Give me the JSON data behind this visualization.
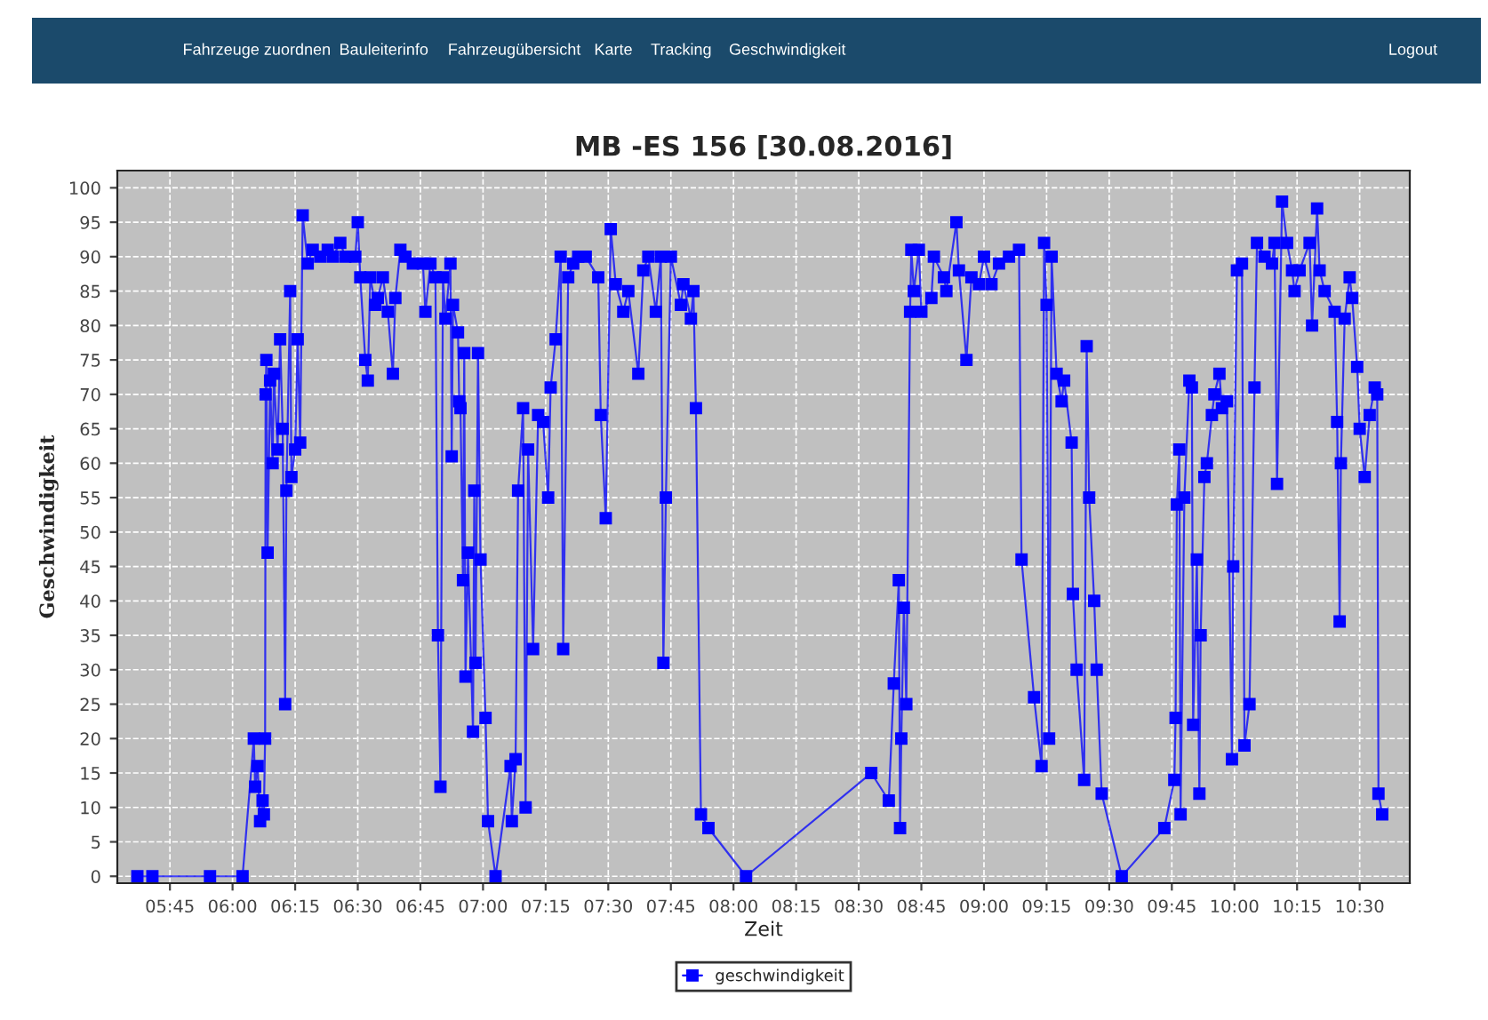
{
  "chart_data": {
    "type": "line",
    "title": "MB -ES 156 [30.08.2016]",
    "xlabel": "Zeit",
    "ylabel": "Geschwindigkeit",
    "annotations": [
      "Fahrzeuge zuordnen",
      "Bauleiterinfo",
      "Fahrzeugübersicht",
      "Karte",
      "Tracking",
      "Geschwindigkeit",
      "Logout"
    ],
    "series": [
      {
        "name": "geschwindigkeit",
        "color": "#0000ff",
        "x": [
          5.62,
          5.68,
          5.91,
          6.04,
          6.085,
          6.09,
          6.1,
          6.11,
          6.12,
          6.125,
          6.13,
          6.132,
          6.135,
          6.14,
          6.15,
          6.16,
          6.165,
          6.18,
          6.19,
          6.2,
          6.21,
          6.215,
          6.23,
          6.235,
          6.25,
          6.26,
          6.27,
          6.28,
          6.3,
          6.32,
          6.35,
          6.38,
          6.4,
          6.43,
          6.45,
          6.49,
          6.5,
          6.51,
          6.53,
          6.54,
          6.55,
          6.57,
          6.58,
          6.6,
          6.62,
          6.64,
          6.65,
          6.67,
          6.69,
          6.72,
          6.76,
          6.77,
          6.79,
          6.81,
          6.82,
          6.83,
          6.84,
          6.85,
          6.87,
          6.875,
          6.88,
          6.9,
          6.905,
          6.91,
          6.92,
          6.925,
          6.93,
          6.94,
          6.96,
          6.965,
          6.97,
          6.98,
          6.99,
          7.01,
          7.02,
          7.05,
          7.11,
          7.115,
          7.13,
          7.14,
          7.16,
          7.17,
          7.18,
          7.2,
          7.22,
          7.24,
          7.26,
          7.27,
          7.29,
          7.31,
          7.32,
          7.34,
          7.36,
          7.38,
          7.41,
          7.46,
          7.47,
          7.49,
          7.51,
          7.53,
          7.56,
          7.58,
          7.62,
          7.64,
          7.66,
          7.69,
          7.71,
          7.72,
          7.73,
          7.75,
          7.79,
          7.8,
          7.83,
          7.84,
          7.85,
          7.87,
          7.9,
          8.05,
          8.55,
          8.62,
          8.64,
          8.66,
          8.665,
          8.67,
          8.68,
          8.69,
          8.705,
          8.71,
          8.72,
          8.74,
          8.75,
          8.79,
          8.8,
          8.84,
          8.85,
          8.89,
          8.9,
          8.93,
          8.95,
          8.98,
          9.0,
          9.03,
          9.06,
          9.1,
          9.14,
          9.15,
          9.2,
          9.23,
          9.24,
          9.25,
          9.26,
          9.27,
          9.29,
          9.31,
          9.32,
          9.35,
          9.355,
          9.37,
          9.4,
          9.41,
          9.42,
          9.44,
          9.45,
          9.47,
          9.55,
          9.72,
          9.76,
          9.765,
          9.77,
          9.78,
          9.785,
          9.8,
          9.82,
          9.83,
          9.835,
          9.85,
          9.86,
          9.865,
          9.88,
          9.89,
          9.91,
          9.92,
          9.94,
          9.95,
          9.97,
          9.99,
          9.995,
          10.01,
          10.03,
          10.04,
          10.06,
          10.08,
          10.09,
          10.12,
          10.15,
          10.16,
          10.17,
          10.19,
          10.21,
          10.23,
          10.24,
          10.26,
          10.3,
          10.31,
          10.33,
          10.34,
          10.36,
          10.4,
          10.41,
          10.42,
          10.425,
          10.44,
          10.46,
          10.47,
          10.49,
          10.5,
          10.52,
          10.54,
          10.56,
          10.57,
          10.575,
          10.59
        ],
        "values": [
          0,
          0,
          0,
          0,
          20,
          13,
          16,
          8,
          11,
          9,
          20,
          70,
          75,
          47,
          72,
          60,
          73,
          62,
          78,
          65,
          25,
          56,
          85,
          58,
          62,
          78,
          63,
          96,
          89,
          91,
          90,
          91,
          90,
          92,
          90,
          90,
          95,
          87,
          75,
          72,
          87,
          83,
          84,
          87,
          82,
          73,
          84,
          91,
          90,
          89,
          89,
          82,
          89,
          87,
          35,
          13,
          87,
          81,
          89,
          61,
          83,
          79,
          69,
          68,
          43,
          76,
          29,
          47,
          21,
          56,
          31,
          76,
          46,
          23,
          8,
          0,
          16,
          8,
          17,
          56,
          68,
          10,
          62,
          33,
          67,
          66,
          55,
          71,
          78,
          90,
          33,
          87,
          89,
          90,
          90,
          87,
          67,
          52,
          94,
          86,
          82,
          85,
          73,
          88,
          90,
          82,
          90,
          31,
          55,
          90,
          83,
          86,
          81,
          85,
          68,
          9,
          7,
          0,
          15,
          11,
          28,
          43,
          7,
          20,
          39,
          25,
          82,
          91,
          85,
          91,
          82,
          84,
          90,
          87,
          85,
          95,
          88,
          75,
          87,
          86,
          90,
          86,
          89,
          90,
          91,
          46,
          26,
          16,
          92,
          83,
          20,
          90,
          73,
          69,
          72,
          63,
          41,
          30,
          14,
          77,
          55,
          40,
          30,
          12,
          0,
          7,
          14,
          23,
          54,
          62,
          9,
          55,
          72,
          71,
          22,
          46,
          12,
          35,
          58,
          60,
          67,
          70,
          73,
          68,
          69,
          17,
          45,
          88,
          89,
          19,
          25,
          71,
          92,
          90,
          89,
          92,
          57,
          98,
          92,
          88,
          85,
          88,
          92,
          80,
          97,
          88,
          85,
          82,
          66,
          37,
          60,
          81,
          87,
          84,
          74,
          65,
          58,
          67,
          71,
          70,
          12,
          9
        ]
      }
    ],
    "xlim": [
      5.54,
      10.7
    ],
    "ylim": [
      -1,
      102.5
    ],
    "xticks": [
      {
        "value": 5.75,
        "label": "05:45"
      },
      {
        "value": 6.0,
        "label": "06:00"
      },
      {
        "value": 6.25,
        "label": "06:15"
      },
      {
        "value": 6.5,
        "label": "06:30"
      },
      {
        "value": 6.75,
        "label": "06:45"
      },
      {
        "value": 7.0,
        "label": "07:00"
      },
      {
        "value": 7.25,
        "label": "07:15"
      },
      {
        "value": 7.5,
        "label": "07:30"
      },
      {
        "value": 7.75,
        "label": "07:45"
      },
      {
        "value": 8.0,
        "label": "08:00"
      },
      {
        "value": 8.25,
        "label": "08:15"
      },
      {
        "value": 8.5,
        "label": "08:30"
      },
      {
        "value": 8.75,
        "label": "08:45"
      },
      {
        "value": 9.0,
        "label": "09:00"
      },
      {
        "value": 9.25,
        "label": "09:15"
      },
      {
        "value": 9.5,
        "label": "09:30"
      },
      {
        "value": 9.75,
        "label": "09:45"
      },
      {
        "value": 10.0,
        "label": "10:00"
      },
      {
        "value": 10.25,
        "label": "10:15"
      },
      {
        "value": 10.5,
        "label": "10:30"
      }
    ],
    "yticks": [
      0,
      5,
      10,
      15,
      20,
      25,
      30,
      35,
      40,
      45,
      50,
      55,
      60,
      65,
      70,
      75,
      80,
      85,
      90,
      95,
      100
    ],
    "grid": true,
    "legend": "bottom",
    "marker": "square",
    "line_style": "solid"
  }
}
